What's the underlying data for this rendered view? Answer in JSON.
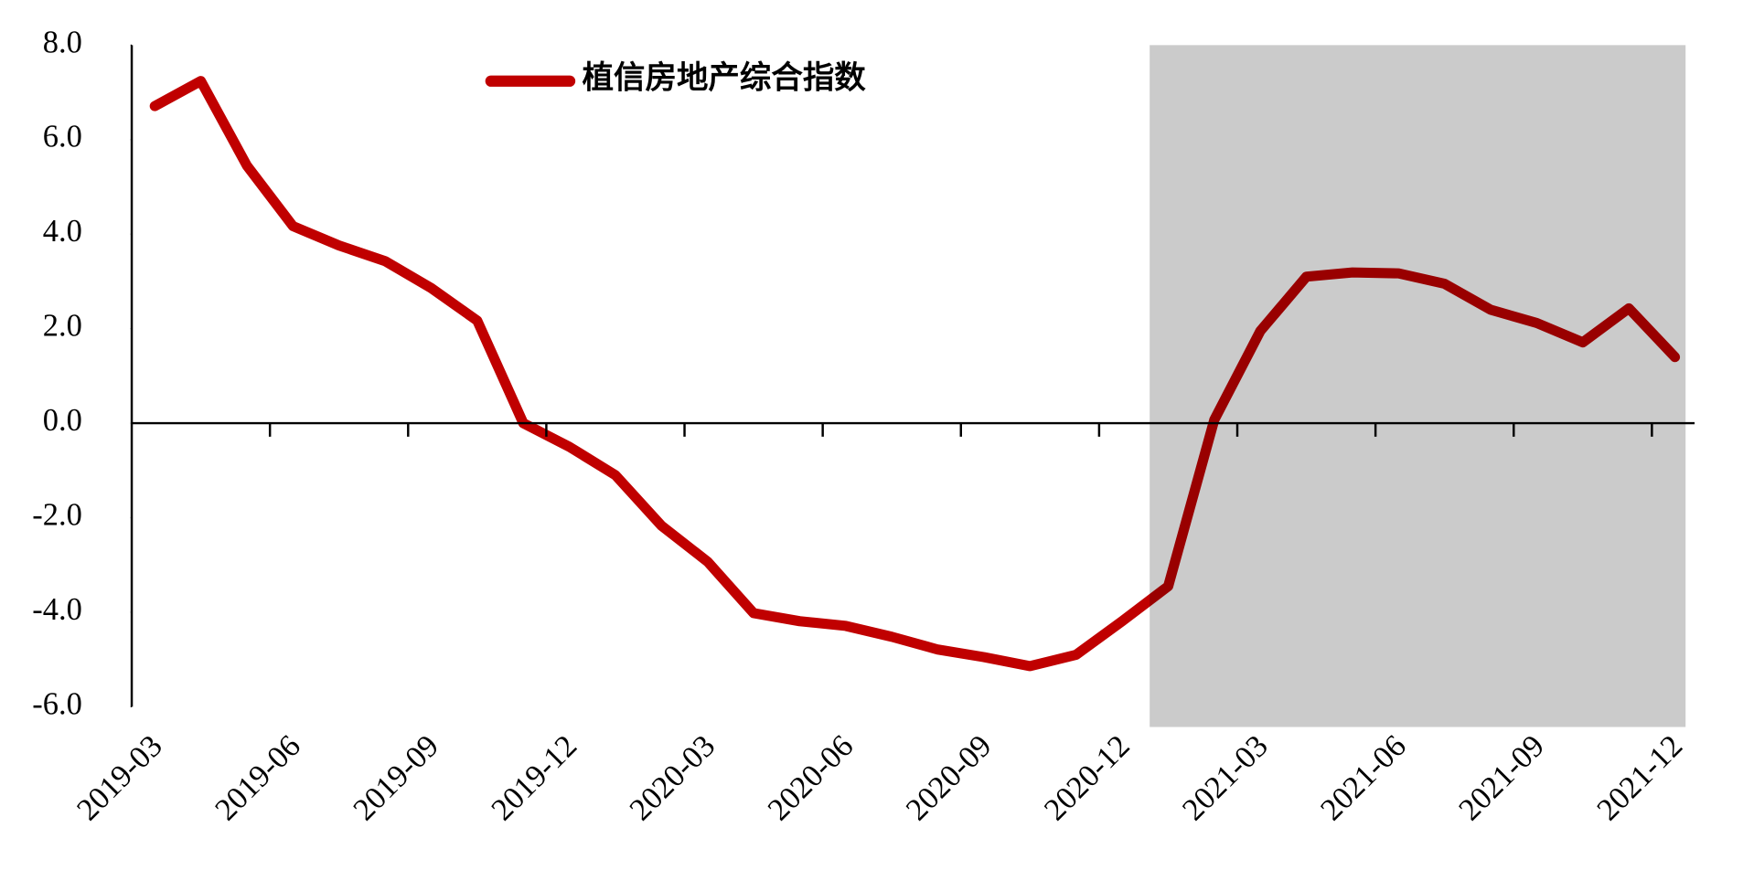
{
  "chart_data": {
    "type": "line",
    "x": [
      "2019-03",
      null,
      null,
      "2019-06",
      null,
      null,
      "2019-09",
      null,
      null,
      "2019-12",
      null,
      null,
      "2020-03",
      null,
      null,
      "2020-06",
      null,
      null,
      "2020-09",
      null,
      null,
      "2020-12",
      null,
      null,
      "2021-03",
      null,
      null,
      "2021-06",
      null,
      null,
      "2021-09",
      null,
      null,
      "2021-12"
    ],
    "series": [
      {
        "name": "植信房地产综合指数",
        "color": "#c00000",
        "values": [
          6.71,
          7.24,
          5.45,
          4.17,
          3.76,
          3.43,
          2.86,
          2.17,
          0.0,
          -0.5,
          -1.1,
          -2.17,
          -2.93,
          -4.02,
          -4.19,
          -4.29,
          -4.52,
          -4.79,
          -4.95,
          -5.14,
          -4.9,
          -4.19,
          -3.45,
          0.07,
          1.95,
          3.1,
          3.19,
          3.17,
          2.95,
          2.4,
          2.12,
          1.71,
          2.43,
          1.4
        ]
      }
    ],
    "ylim": [
      -6,
      8
    ],
    "yticks": [
      {
        "value": -6,
        "label": "-6.0"
      },
      {
        "value": -4,
        "label": "-4.0"
      },
      {
        "value": -2,
        "label": "-2.0"
      },
      {
        "value": 0,
        "label": "0.0"
      },
      {
        "value": 2,
        "label": "2.0"
      },
      {
        "value": 4,
        "label": "4.0"
      },
      {
        "value": 6,
        "label": "6.0"
      },
      {
        "value": 8,
        "label": "8.0"
      }
    ],
    "grid": false
  }
}
